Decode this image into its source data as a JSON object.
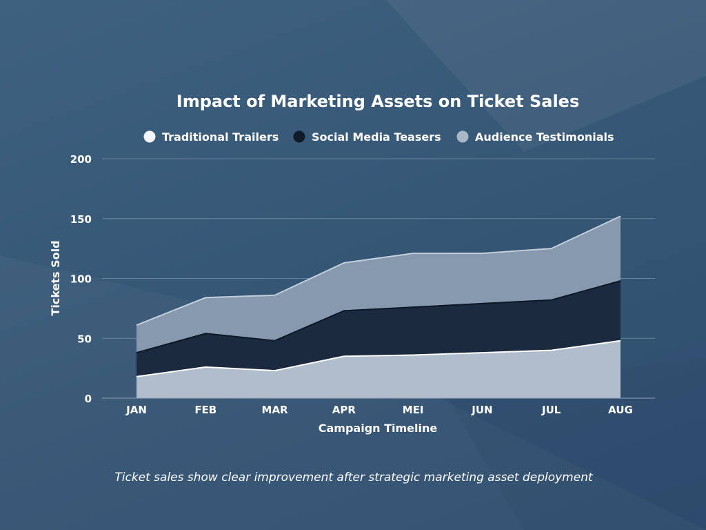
{
  "chart_data": {
    "type": "area",
    "stacked": true,
    "title": "Impact of Marketing Assets on Ticket Sales",
    "xlabel": "Campaign Timeline",
    "ylabel": "Tickets Sold",
    "categories": [
      "JAN",
      "FEB",
      "MAR",
      "APR",
      "MEI",
      "JUN",
      "JUL",
      "AUG"
    ],
    "ylim": [
      0,
      200
    ],
    "yticks": [
      0,
      50,
      100,
      150,
      200
    ],
    "grid": true,
    "legend_position": "top",
    "series": [
      {
        "name": "Traditional Trailers",
        "values": [
          18,
          26,
          23,
          35,
          36,
          38,
          40,
          48
        ],
        "color": "#b0bdcc",
        "legend_color": "#f4f6fa"
      },
      {
        "name": "Social Media Teasers",
        "values": [
          20,
          28,
          25,
          38,
          40,
          41,
          42,
          50
        ],
        "color": "#1b2a3e",
        "legend_color": "#0f1a2b"
      },
      {
        "name": "Audience Testimonials",
        "values": [
          23,
          30,
          38,
          40,
          45,
          42,
          43,
          54
        ],
        "color": "#8699ae",
        "legend_color": "#a9b7c6"
      }
    ],
    "caption": "Ticket sales show clear improvement after strategic marketing asset deployment"
  }
}
